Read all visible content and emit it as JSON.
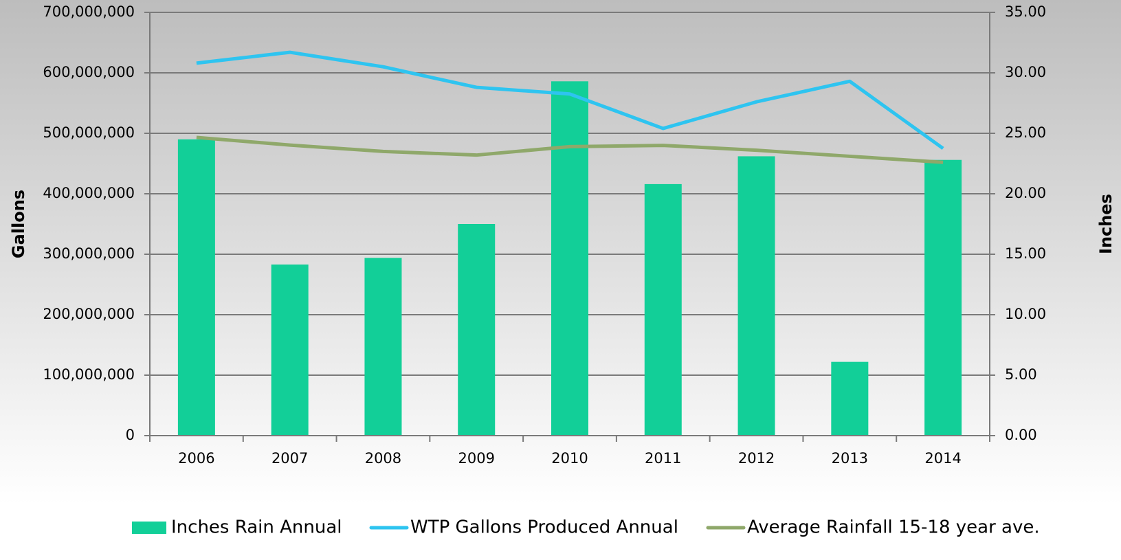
{
  "chart_data": {
    "type": "bar",
    "categories": [
      "2006",
      "2007",
      "2008",
      "2009",
      "2010",
      "2011",
      "2012",
      "2013",
      "2014"
    ],
    "series": [
      {
        "name": "Inches Rain Annual",
        "type": "bar",
        "axis": "y2",
        "color": "#12cf98",
        "values": [
          24.5,
          14.15,
          14.7,
          17.5,
          29.3,
          20.8,
          23.1,
          6.1,
          22.8
        ]
      },
      {
        "name": "WTP Gallons Produced Annual",
        "type": "line",
        "axis": "y",
        "color": "#2ec4f0",
        "values": [
          616000000,
          634000000,
          610000000,
          576000000,
          565000000,
          508000000,
          552000000,
          586000000,
          475000000
        ]
      },
      {
        "name": "Average Rainfall 15-18 year ave.",
        "type": "line",
        "axis": "y2",
        "color": "#8fa86a",
        "values": [
          24.66,
          24.03,
          23.5,
          23.2,
          23.9,
          24.0,
          23.6,
          23.1,
          22.6
        ]
      }
    ],
    "ylabel": "Gallons",
    "y2label": "Inches",
    "ylim": [
      0,
      700000000
    ],
    "yticks": [
      0,
      {
        "value": 100000000,
        "label": "100,000,000"
      },
      {
        "value": 200000000,
        "label": "200,000,000"
      },
      {
        "value": 300000000,
        "label": "300,000,000"
      },
      {
        "value": 400000000,
        "label": "400,000,000"
      },
      {
        "value": 500000000,
        "label": "500,000,000"
      },
      {
        "value": 600000000,
        "label": "600,000,000"
      },
      {
        "value": 700000000,
        "label": "700,000,000"
      }
    ],
    "y2lim": [
      0,
      35
    ],
    "y2ticks": [
      {
        "value": 0,
        "label": "0.00"
      },
      {
        "value": 5,
        "label": "5.00"
      },
      {
        "value": 10,
        "label": "10.00"
      },
      {
        "value": 15,
        "label": "15.00"
      },
      {
        "value": 20,
        "label": "20.00"
      },
      {
        "value": 25,
        "label": "25.00"
      },
      {
        "value": 30,
        "label": "30.00"
      },
      {
        "value": 35,
        "label": "35.00"
      }
    ],
    "grid": true,
    "legend": "bottom"
  }
}
